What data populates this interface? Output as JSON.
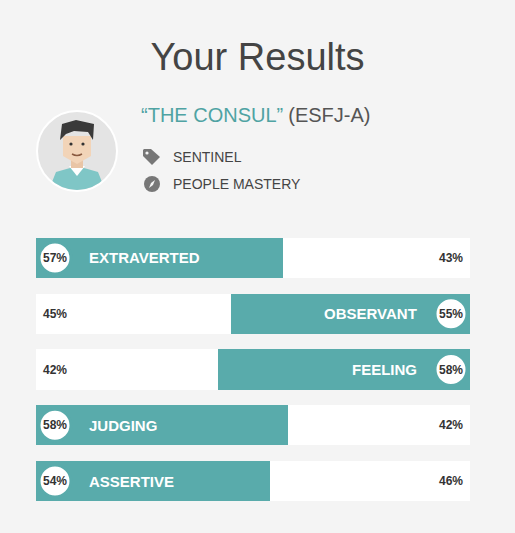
{
  "header": {
    "title": "Your Results",
    "type_name": "“THE CONSUL”",
    "type_code": "(ESFJ-A)",
    "role": "SENTINEL",
    "strategy": "PEOPLE MASTERY"
  },
  "chart_data": {
    "type": "bar",
    "orientation": "horizontal",
    "stacked": true,
    "data_labels": true,
    "tick_labels": false,
    "categories": [
      "EXTRAVERTED",
      "OBSERVANT",
      "FEELING",
      "JUDGING",
      "ASSERTIVE"
    ],
    "xlim": [
      0,
      100
    ],
    "series": [
      {
        "values": [
          57,
          45,
          42,
          58,
          54
        ],
        "value_labels": [
          "57%",
          "45%",
          "42%",
          "58%",
          "54%"
        ],
        "colors": [
          "#59abab",
          "#ffffff",
          "#ffffff",
          "#59abab",
          "#59abab"
        ]
      },
      {
        "values": [
          43,
          55,
          58,
          42,
          46
        ],
        "value_labels": [
          "43%",
          "55%",
          "58%",
          "42%",
          "46%"
        ],
        "colors": [
          "#ffffff",
          "#59abab",
          "#59abab",
          "#ffffff",
          "#ffffff"
        ]
      }
    ]
  }
}
